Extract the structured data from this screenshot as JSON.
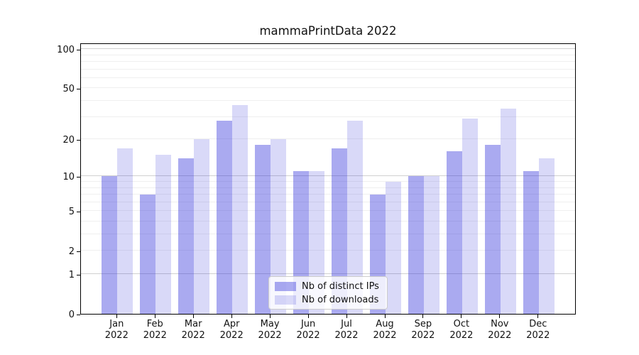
{
  "chart_data": {
    "type": "bar",
    "title": "mammaPrintData 2022",
    "categories": [
      "Jan",
      "Feb",
      "Mar",
      "Apr",
      "May",
      "Jun",
      "Jul",
      "Aug",
      "Sep",
      "Oct",
      "Nov",
      "Dec"
    ],
    "category_year": "2022",
    "series": [
      {
        "name": "Nb of distinct IPs",
        "values": [
          10,
          7,
          14,
          28,
          18,
          11,
          17,
          7,
          10,
          16,
          18,
          11
        ],
        "color_rgba": "rgba(43,43,218,0.40)"
      },
      {
        "name": "Nb of downloads",
        "values": [
          17,
          15,
          20,
          37,
          20,
          11,
          28,
          9,
          10,
          29,
          35,
          14
        ],
        "color_rgba": "rgba(43,43,218,0.18)"
      }
    ],
    "y_scale": "log1p",
    "y_ticks": [
      0,
      1,
      2,
      5,
      10,
      20,
      50,
      100
    ],
    "ylim": [
      0,
      112
    ],
    "grid": {
      "major_values": [
        1,
        10,
        100
      ],
      "minor_values": [
        2,
        3,
        4,
        5,
        6,
        7,
        8,
        9,
        20,
        30,
        40,
        50,
        60,
        70,
        80,
        90
      ],
      "grid_on": true
    },
    "legend_position": "lower center",
    "colors": {
      "spine": "#000000",
      "major_grid": "#d0d0d0",
      "minor_grid": "#efefef",
      "background": "#ffffff"
    }
  }
}
